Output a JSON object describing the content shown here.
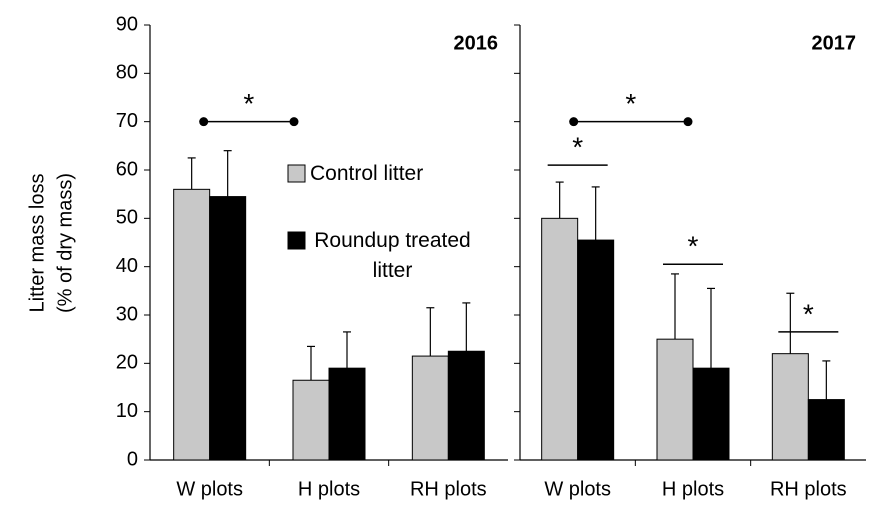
{
  "chart_data": [
    {
      "type": "bar",
      "title": "2016",
      "ylabel": [
        "Litter mass loss",
        "(% of dry mass)"
      ],
      "categories": [
        "W plots",
        "H plots",
        "RH plots"
      ],
      "series": [
        {
          "name": "Control litter",
          "color": "#c8c8c8",
          "values": [
            56,
            16.5,
            21.5
          ],
          "errors": [
            6.5,
            7,
            10
          ]
        },
        {
          "name": "Roundup treated litter",
          "color": "#000000",
          "values": [
            54.5,
            19,
            22.5
          ],
          "errors": [
            9.5,
            7.5,
            10
          ]
        }
      ],
      "ylim": [
        0,
        90
      ],
      "yticks": [
        0,
        10,
        20,
        30,
        40,
        50,
        60,
        70,
        80,
        90
      ],
      "annotations": [
        "*"
      ]
    },
    {
      "type": "bar",
      "title": "2017",
      "categories": [
        "W plots",
        "H plots",
        "RH plots"
      ],
      "series": [
        {
          "name": "Control litter",
          "color": "#c8c8c8",
          "values": [
            50,
            25,
            22
          ],
          "errors": [
            7.5,
            13.5,
            12.5
          ]
        },
        {
          "name": "Roundup treated litter",
          "color": "#000000",
          "values": [
            45.5,
            19,
            12.5
          ],
          "errors": [
            11,
            16.5,
            8
          ]
        }
      ],
      "ylim": [
        0,
        90
      ],
      "annotations": [
        "*",
        "*",
        "*",
        "*"
      ]
    }
  ]
}
